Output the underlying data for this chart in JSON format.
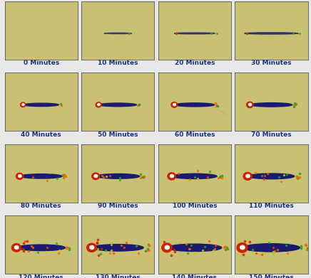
{
  "grid_rows": 4,
  "grid_cols": 4,
  "labels": [
    "0 Minutes",
    "10 Minutes",
    "20 Minutes",
    "30 Minutes",
    "40 Minutes",
    "50 Minutes",
    "60 Minutes",
    "70 Minutes",
    "80 Minutes",
    "90 Minutes",
    "100 Minutes",
    "110 Minutes",
    "120 Minutes",
    "130 Minutes",
    "140 Minutes",
    "150 Minutes"
  ],
  "bg_color": "#c8c073",
  "wear_color": "#1a1a6e",
  "red_color": "#cc2200",
  "white_color": "#ffffff",
  "green_color": "#22aa22",
  "orange_color": "#ff6600",
  "yellow_color": "#cccc00",
  "label_color": "#1a3380",
  "border_color": "#555555",
  "figure_bg": "#e8e8e8",
  "label_fontsize": 6.5,
  "label_fontweight": "bold"
}
